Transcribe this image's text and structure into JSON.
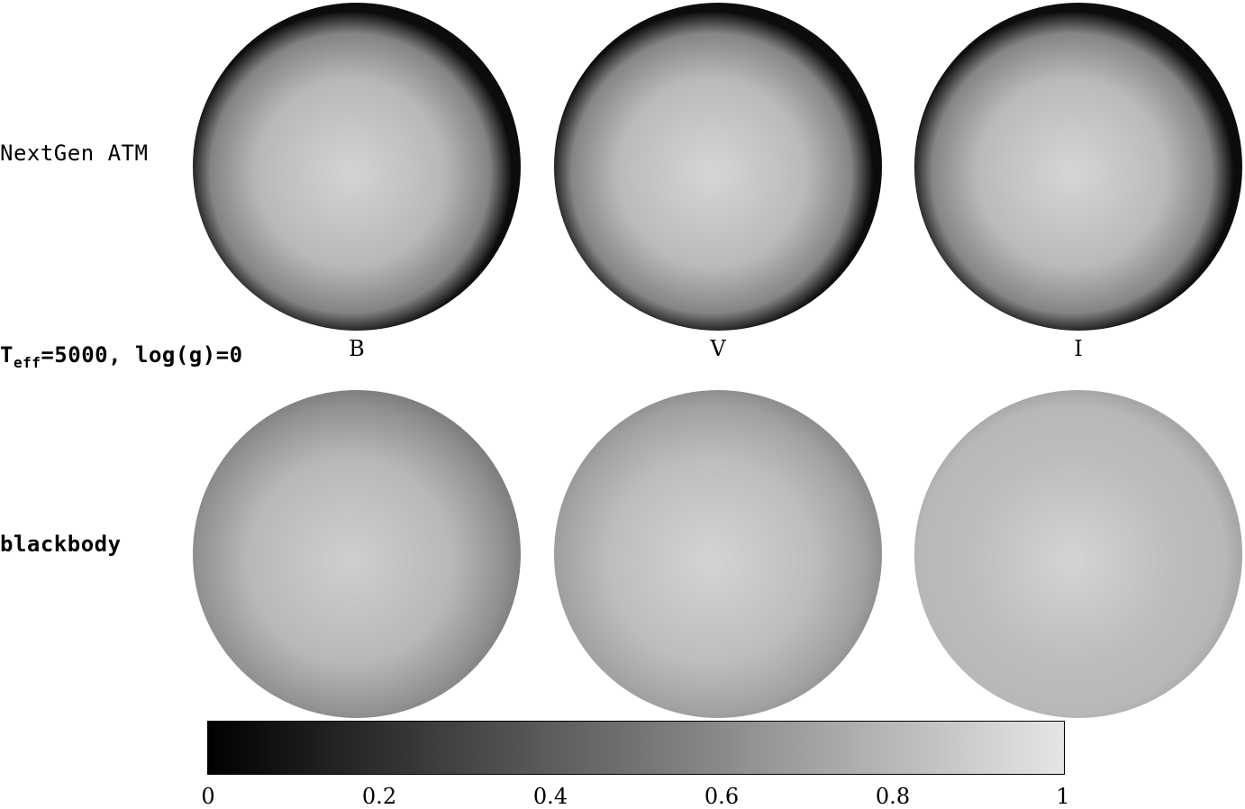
{
  "rows": {
    "top_label": "NextGen ATM",
    "params_label_base": "T",
    "params_label_sub": "eff",
    "params_label_rest": "=5000, log(g)=0",
    "bottom_label": "blackbody"
  },
  "bands": [
    "B",
    "V",
    "I"
  ],
  "colorbar": {
    "min": 0,
    "max": 1,
    "ticks": [
      "0",
      "0.2",
      "0.4",
      "0.6",
      "0.8",
      "1"
    ],
    "color_low": "#000000",
    "color_high": "#e6e6e6"
  },
  "disks": {
    "nextgen": [
      {
        "band": "B",
        "center_intensity": 0.92,
        "limb_intensity": 0.05
      },
      {
        "band": "V",
        "center_intensity": 0.93,
        "limb_intensity": 0.05
      },
      {
        "band": "I",
        "center_intensity": 0.93,
        "limb_intensity": 0.05
      }
    ],
    "blackbody": [
      {
        "band": "B",
        "center_intensity": 0.9,
        "limb_intensity": 0.55
      },
      {
        "band": "V",
        "center_intensity": 0.92,
        "limb_intensity": 0.62
      },
      {
        "band": "I",
        "center_intensity": 0.92,
        "limb_intensity": 0.72
      }
    ]
  }
}
